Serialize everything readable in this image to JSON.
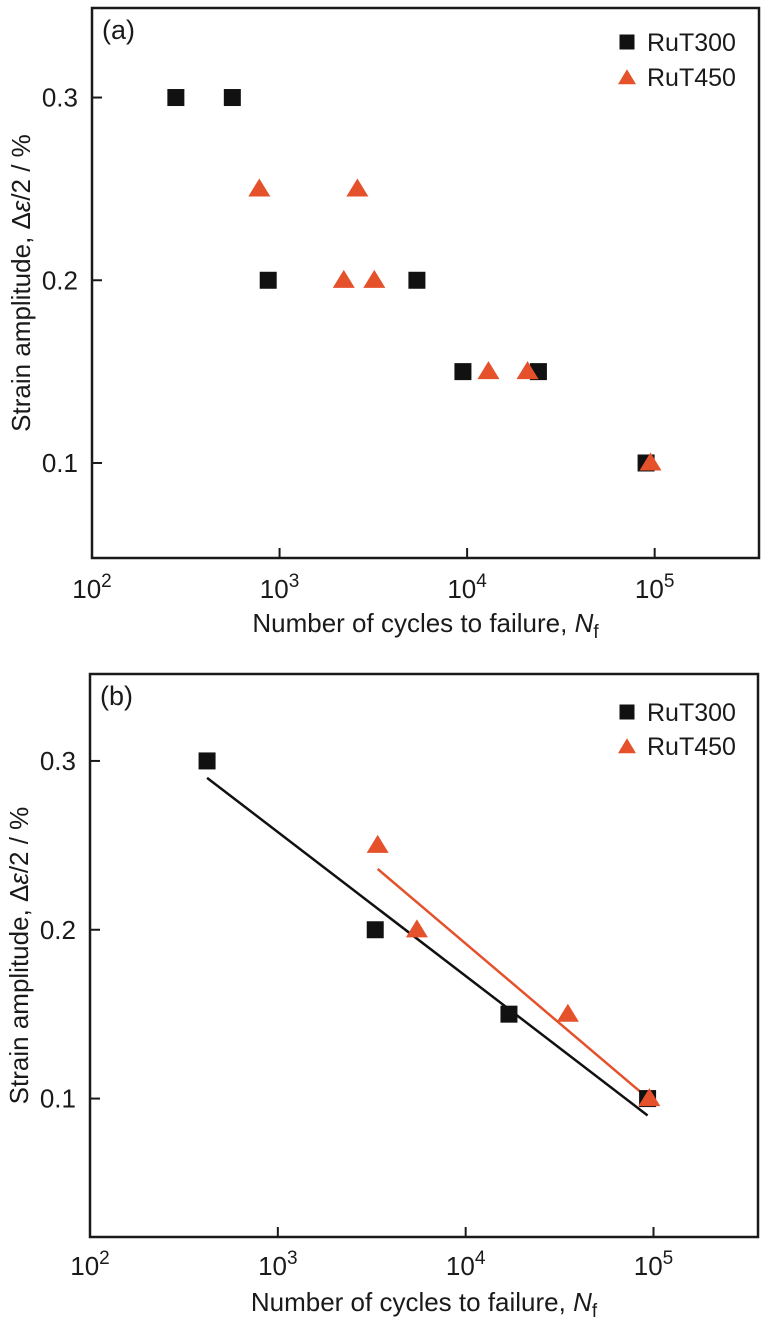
{
  "figure": {
    "background": "#ffffff",
    "text_color": "#1a1a1a",
    "frame_color": "#1a1a1a"
  },
  "legend": {
    "position": "top-right",
    "entries": [
      {
        "label": "RuT300",
        "marker": "square",
        "color": "#111111"
      },
      {
        "label": "RuT450",
        "marker": "triangle",
        "color": "#e4512b"
      }
    ]
  },
  "chart_data": [
    {
      "type": "scatter",
      "panel_label": "(a)",
      "x_scale": "log",
      "y_scale": "linear",
      "xlim": [
        100,
        360000
      ],
      "ylim": [
        0.048,
        0.349
      ],
      "grid": false,
      "legend_position": "top-right",
      "x_ticks": [
        {
          "base": "10",
          "exp": "2",
          "value": 100
        },
        {
          "base": "10",
          "exp": "3",
          "value": 1000
        },
        {
          "base": "10",
          "exp": "4",
          "value": 10000
        },
        {
          "base": "10",
          "exp": "5",
          "value": 100000
        }
      ],
      "y_ticks": [
        {
          "label": "0.1",
          "value": 0.1
        },
        {
          "label": "0.2",
          "value": 0.2
        },
        {
          "label": "0.3",
          "value": 0.3
        }
      ],
      "xlabel_parts": [
        {
          "t": "Number of cycles to failure, "
        },
        {
          "t": "N",
          "style": "italic"
        },
        {
          "t": "f",
          "style": "sub"
        }
      ],
      "ylabel_parts": [
        {
          "t": "Strain amplitude, "
        },
        {
          "t": "Δ"
        },
        {
          "t": "ε",
          "style": "italic"
        },
        {
          "t": "/2 / %"
        }
      ],
      "series": [
        {
          "name": "RuT300",
          "marker": "square",
          "color": "#111111",
          "points": [
            [
              280,
              0.3
            ],
            [
              560,
              0.3
            ],
            [
              870,
              0.2
            ],
            [
              5400,
              0.2
            ],
            [
              9500,
              0.15
            ],
            [
              24000,
              0.15
            ],
            [
              90000,
              0.1
            ]
          ]
        },
        {
          "name": "RuT450",
          "marker": "triangle",
          "color": "#e4512b",
          "points": [
            [
              780,
              0.25
            ],
            [
              2600,
              0.25
            ],
            [
              2200,
              0.2
            ],
            [
              3200,
              0.2
            ],
            [
              13000,
              0.15
            ],
            [
              21000,
              0.15
            ],
            [
              95000,
              0.1
            ]
          ]
        }
      ]
    },
    {
      "type": "scatter",
      "panel_label": "(b)",
      "x_scale": "log",
      "y_scale": "linear",
      "xlim": [
        100,
        360000
      ],
      "ylim": [
        0.018,
        0.3515
      ],
      "grid": false,
      "legend_position": "top-right",
      "x_ticks": [
        {
          "base": "10",
          "exp": "2",
          "value": 100
        },
        {
          "base": "10",
          "exp": "3",
          "value": 1000
        },
        {
          "base": "10",
          "exp": "4",
          "value": 10000
        },
        {
          "base": "10",
          "exp": "5",
          "value": 100000
        }
      ],
      "y_ticks": [
        {
          "label": "0.1",
          "value": 0.1
        },
        {
          "label": "0.2",
          "value": 0.2
        },
        {
          "label": "0.3",
          "value": 0.3
        }
      ],
      "xlabel_parts": [
        {
          "t": "Number of cycles to failure, "
        },
        {
          "t": "N",
          "style": "italic"
        },
        {
          "t": "f",
          "style": "sub"
        }
      ],
      "ylabel_parts": [
        {
          "t": "Strain amplitude, "
        },
        {
          "t": "Δ"
        },
        {
          "t": "ε",
          "style": "italic"
        },
        {
          "t": "/2 / %"
        }
      ],
      "series": [
        {
          "name": "RuT300",
          "marker": "square",
          "color": "#111111",
          "points": [
            [
              420,
              0.3
            ],
            [
              3300,
              0.2
            ],
            [
              17000,
              0.15
            ],
            [
              93000,
              0.1
            ]
          ],
          "fit_line": {
            "from": [
              420,
              0.29
            ],
            "to": [
              93000,
              0.09
            ]
          }
        },
        {
          "name": "RuT450",
          "marker": "triangle",
          "color": "#e4512b",
          "points": [
            [
              3400,
              0.25
            ],
            [
              5500,
              0.2
            ],
            [
              35000,
              0.15
            ],
            [
              95000,
              0.1
            ]
          ],
          "fit_line": {
            "from": [
              3400,
              0.236
            ],
            "to": [
              95000,
              0.0995
            ]
          }
        }
      ]
    }
  ]
}
